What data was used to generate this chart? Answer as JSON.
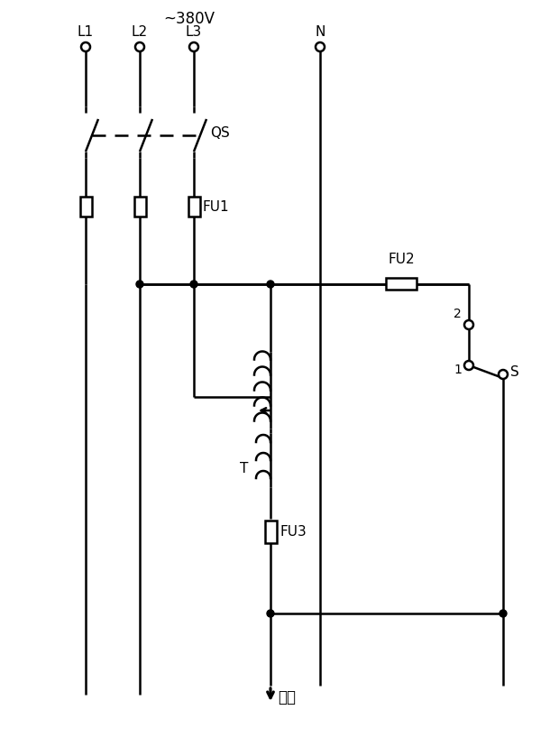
{
  "bg_color": "#ffffff",
  "line_color": "#000000",
  "labels": {
    "voltage": "~380V",
    "L1": "L1",
    "L2": "L2",
    "L3": "L3",
    "N": "N",
    "QS": "QS",
    "FU1": "FU1",
    "FU2": "FU2",
    "FU3": "FU3",
    "T": "T",
    "S": "S",
    "num1": "1",
    "num2": "2",
    "output": "输出"
  },
  "figsize": [
    6.2,
    8.38
  ],
  "dpi": 100,
  "xL1": 95,
  "xL2": 155,
  "xL3": 215,
  "xN": 355,
  "xRight": 520,
  "xTx": 300
}
